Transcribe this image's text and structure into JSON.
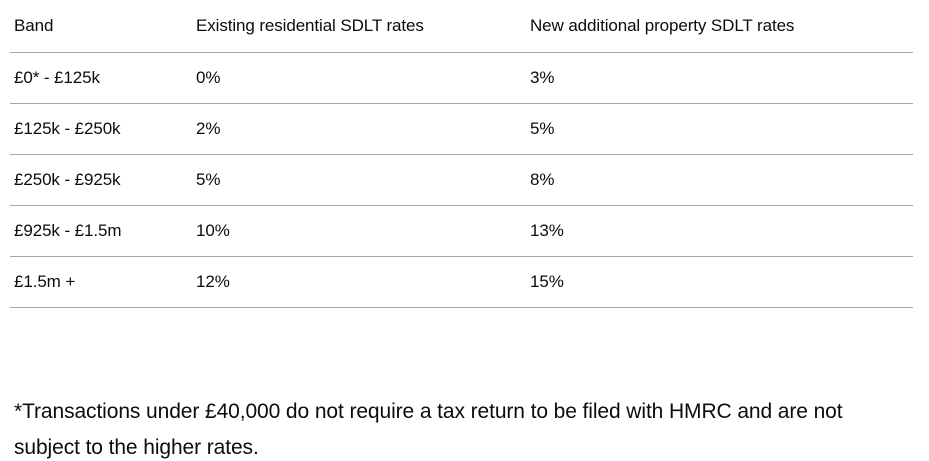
{
  "table": {
    "columns": [
      "Band",
      "Existing residential SDLT rates",
      "New additional property SDLT rates"
    ],
    "rows": [
      {
        "band": "£0* - £125k",
        "existing_rate": "0%",
        "new_rate": "3%"
      },
      {
        "band": "£125k - £250k",
        "existing_rate": "2%",
        "new_rate": "5%"
      },
      {
        "band": "£250k - £925k",
        "existing_rate": "5%",
        "new_rate": "8%"
      },
      {
        "band": "£925k - £1.5m",
        "existing_rate": "10%",
        "new_rate": "13%"
      },
      {
        "band": "£1.5m +",
        "existing_rate": "12%",
        "new_rate": "15%"
      }
    ]
  },
  "footnote": "*Transactions under £40,000 do not require a tax return to be filed with HMRC and are not subject to the higher rates.",
  "colors": {
    "text": "#0b0c0c",
    "divider": "#a6a6a6",
    "background": "#ffffff"
  }
}
